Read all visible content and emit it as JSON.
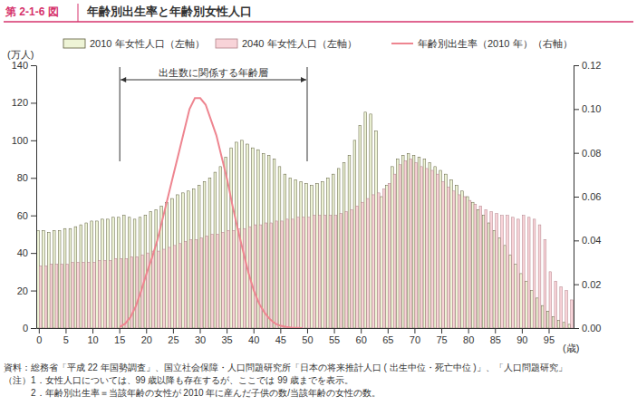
{
  "chart_data": {
    "type": "bar",
    "figure_label": "第 2-1-6 図",
    "title": "年齢別出生率と年齢別女性人口",
    "y_label": "(万人)",
    "x_label": "(歳)",
    "annotation": {
      "text": "出生数に関係する年齢層",
      "from": 15,
      "to": 49
    },
    "notes": [
      "資料：総務省「平成 22 年国勢調査」、国立社会保障・人口問題研究所「日本の将来推計人口 ( 出生中位・死亡中位 )」、「人口問題研究」",
      "（注）1．女性人口については、99 歳以降も存在するが、ここでは 99 歳までを表示。",
      "　　　2．年齢別出生率＝当該年齢の女性が 2010 年に産んだ子供の数/当該年齢の女性の数。"
    ],
    "categories": [
      0,
      null,
      null,
      null,
      null,
      5,
      null,
      null,
      null,
      null,
      10,
      null,
      null,
      null,
      null,
      15,
      null,
      null,
      null,
      null,
      20,
      null,
      null,
      null,
      null,
      25,
      null,
      null,
      null,
      null,
      30,
      null,
      null,
      null,
      null,
      35,
      null,
      null,
      null,
      null,
      40,
      null,
      null,
      null,
      null,
      45,
      null,
      null,
      null,
      null,
      50,
      null,
      null,
      null,
      null,
      55,
      null,
      null,
      null,
      null,
      60,
      null,
      null,
      null,
      null,
      65,
      null,
      null,
      null,
      null,
      70,
      null,
      null,
      null,
      null,
      75,
      null,
      null,
      null,
      null,
      80,
      null,
      null,
      null,
      null,
      85,
      null,
      null,
      null,
      null,
      90,
      null,
      null,
      null,
      null,
      95,
      null,
      null,
      null,
      null
    ],
    "series": [
      {
        "name": "2010 年女性人口（左軸）",
        "type": "bar",
        "color": "#eef4d6",
        "values": [
          52,
          52,
          51,
          52,
          52,
          53,
          53,
          54,
          55,
          56,
          57,
          57,
          58,
          58,
          59,
          59,
          60,
          59,
          58,
          59,
          60,
          62,
          63,
          65,
          67,
          69,
          71,
          72,
          73,
          74,
          76,
          78,
          80,
          83,
          86,
          91,
          96,
          99,
          100,
          98,
          96,
          95,
          93,
          92,
          90,
          86,
          82,
          80,
          79,
          78,
          77,
          76,
          77,
          78,
          80,
          82,
          85,
          88,
          92,
          100,
          108,
          115,
          114,
          105,
          70,
          76,
          86,
          90,
          92,
          93,
          92,
          91,
          90,
          88,
          86,
          84,
          82,
          79,
          76,
          73,
          70,
          67,
          63,
          60,
          56,
          52,
          48,
          44,
          39,
          34,
          29,
          25,
          20,
          16,
          12,
          9,
          6,
          4,
          3,
          2
        ]
      },
      {
        "name": "2040 年女性人口（左軸）",
        "type": "bar",
        "color": "#f8d3d8",
        "values": [
          33,
          33,
          34,
          34,
          34,
          34,
          35,
          35,
          35,
          35,
          35,
          36,
          36,
          36,
          37,
          37,
          37,
          38,
          38,
          39,
          40,
          41,
          41,
          42,
          43,
          44,
          45,
          46,
          47,
          47,
          48,
          49,
          50,
          50,
          51,
          52,
          52,
          53,
          53,
          54,
          55,
          55,
          56,
          56,
          57,
          57,
          58,
          58,
          59,
          59,
          59,
          60,
          60,
          60,
          60,
          60,
          61,
          62,
          63,
          65,
          67,
          69,
          71,
          72,
          74,
          77,
          82,
          87,
          89,
          90,
          88,
          86,
          85,
          84,
          82,
          78,
          75,
          73,
          71,
          70,
          68,
          66,
          65,
          63,
          62,
          61,
          60,
          60,
          59,
          58,
          60,
          59,
          58,
          55,
          47,
          30,
          25,
          22,
          20,
          15
        ]
      },
      {
        "name": "年齢別出生率（2010 年）（右軸）",
        "type": "line",
        "axis": "y2",
        "color": "#ee8590",
        "values": [
          null,
          null,
          null,
          null,
          null,
          null,
          null,
          null,
          null,
          null,
          null,
          null,
          null,
          null,
          null,
          0.0005,
          0.002,
          0.005,
          0.01,
          0.017,
          0.025,
          0.032,
          0.04,
          0.05,
          0.06,
          0.07,
          0.08,
          0.09,
          0.1,
          0.105,
          0.105,
          0.102,
          0.095,
          0.088,
          0.078,
          0.068,
          0.056,
          0.045,
          0.035,
          0.025,
          0.017,
          0.011,
          0.007,
          0.004,
          0.002,
          0.001,
          0.0005,
          0.0002,
          0.0001,
          0,
          null,
          null,
          null,
          null,
          null,
          null,
          null,
          null,
          null,
          null,
          null,
          null,
          null,
          null,
          null,
          null,
          null,
          null,
          null,
          null,
          null,
          null,
          null,
          null,
          null,
          null,
          null,
          null,
          null,
          null,
          null,
          null,
          null,
          null,
          null,
          null,
          null,
          null,
          null,
          null,
          null,
          null,
          null,
          null,
          null,
          null,
          null,
          null,
          null,
          null
        ]
      }
    ],
    "ylim": [
      0,
      140
    ],
    "yticks": [
      0,
      20,
      40,
      60,
      80,
      100,
      120,
      140
    ],
    "y2lim": [
      0,
      0.12
    ],
    "y2ticks": [
      {
        "value": 0,
        "label": "0.00"
      },
      0.02,
      0.04,
      0.06,
      0.08,
      {
        "value": 0.1,
        "label": "0.10"
      },
      0.12
    ],
    "grid": false,
    "legend": "top"
  }
}
